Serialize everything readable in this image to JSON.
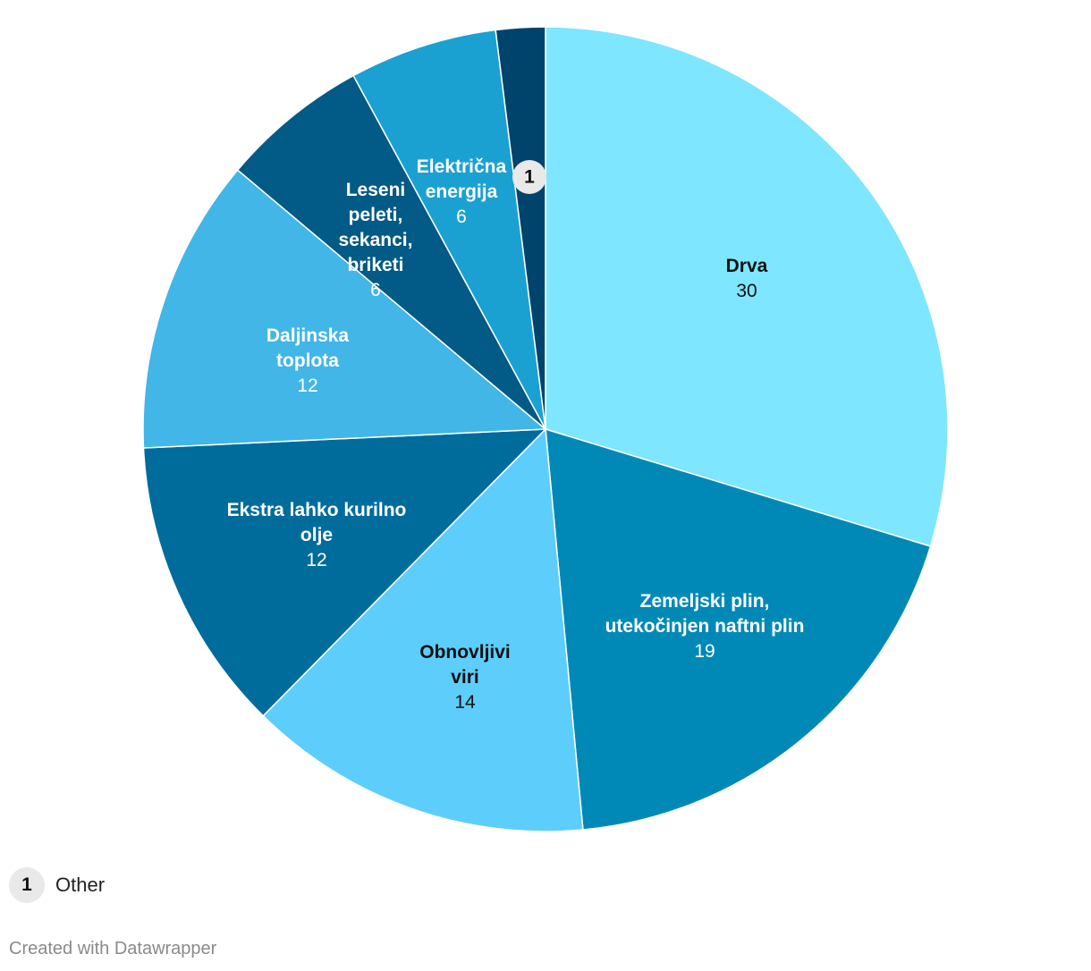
{
  "chart_data": {
    "type": "pie",
    "slices": [
      {
        "label": "Drva",
        "value": 30,
        "color": "#7ee6fe",
        "text_color": "#111111"
      },
      {
        "label": "Zemeljski plin, utekočinjen naftni plin",
        "value": 19,
        "color": "#0089b7",
        "text_color": "#ffffff"
      },
      {
        "label": "Obnovljivi viri",
        "value": 14,
        "color": "#5dcdfc",
        "text_color": "#111111"
      },
      {
        "label": "Ekstra lahko kurilno olje",
        "value": 12,
        "color": "#006c9c",
        "text_color": "#ffffff"
      },
      {
        "label": "Daljinska toplota",
        "value": 12,
        "color": "#42b6e6",
        "text_color": "#ffffff"
      },
      {
        "label": "Leseni peleti, sekanci, briketi",
        "value": 6,
        "color": "#025a86",
        "text_color": "#ffffff"
      },
      {
        "label": "Električna energija",
        "value": 6,
        "color": "#1ba1d1",
        "text_color": "#ffffff"
      },
      {
        "label": "1",
        "value": 2,
        "color": "#01446b",
        "text_color": "#111111"
      }
    ],
    "footnote": {
      "marker": "1",
      "text": "Other"
    }
  },
  "credit": "Created with Datawrapper"
}
